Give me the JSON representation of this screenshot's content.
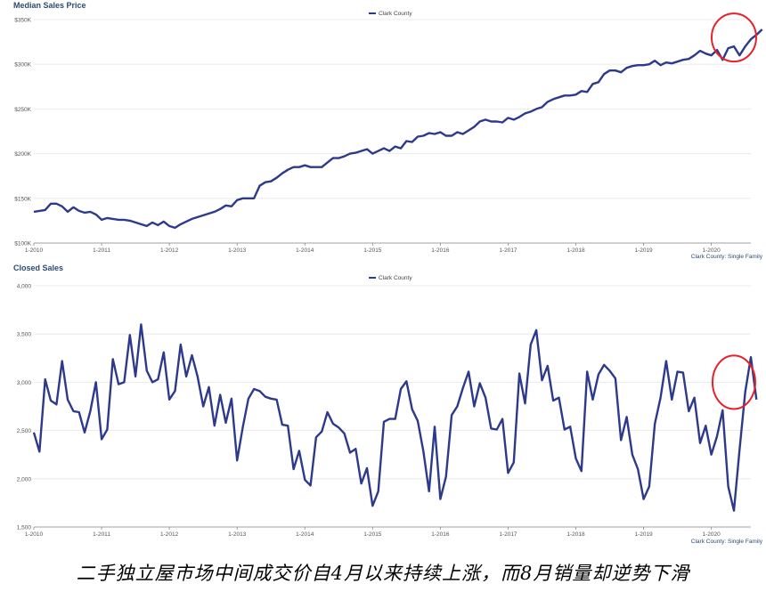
{
  "caption": "二手独立屋市场中间成交价自4月以来持续上涨，而8月销量却逆势下滑",
  "colors": {
    "line": "#2d3a8c",
    "title": "#2b4b73",
    "axis": "#555555",
    "grid": "#e6e6e6",
    "highlight": "#e8202a"
  },
  "chart_data": [
    {
      "type": "line",
      "title": "Median Sales Price",
      "legend": "Clark County",
      "source_note": "Clark County: Single Family",
      "ylim": [
        100000,
        350000
      ],
      "y_ticks": [
        100000,
        150000,
        200000,
        250000,
        300000,
        350000
      ],
      "y_tick_labels": [
        "$100K",
        "$150K",
        "$200K",
        "$250K",
        "$300K",
        "$350K"
      ],
      "x_range": [
        0,
        127
      ],
      "x_ticks": [
        0,
        12,
        24,
        36,
        48,
        60,
        72,
        84,
        96,
        108,
        120
      ],
      "x_tick_labels": [
        "1-2010",
        "1-2011",
        "1-2012",
        "1-2013",
        "1-2014",
        "1-2015",
        "1-2016",
        "1-2017",
        "1-2018",
        "1-2019",
        "1-2020"
      ],
      "highlight": {
        "x": 124,
        "y": 330000,
        "note": "red circle"
      },
      "series": [
        {
          "name": "Clark County",
          "values": [
            135000,
            136000,
            137000,
            144000,
            144000,
            141000,
            135000,
            140000,
            136000,
            134000,
            135000,
            132000,
            126000,
            128000,
            127000,
            126000,
            126000,
            125000,
            123000,
            121000,
            119000,
            123000,
            120000,
            124000,
            119000,
            117000,
            121000,
            124000,
            127000,
            129000,
            131000,
            133000,
            135000,
            138000,
            142000,
            141000,
            148000,
            150000,
            150000,
            150000,
            164000,
            168000,
            169000,
            173000,
            178000,
            182000,
            185000,
            185000,
            187000,
            185000,
            185000,
            185000,
            190000,
            195000,
            195000,
            197000,
            200000,
            201000,
            203000,
            205000,
            200000,
            203000,
            206000,
            203000,
            208000,
            206000,
            214000,
            213000,
            219000,
            220000,
            223000,
            222000,
            224000,
            220000,
            220000,
            224000,
            222000,
            226000,
            230000,
            236000,
            238000,
            236000,
            236000,
            235000,
            240000,
            238000,
            241000,
            245000,
            247000,
            250000,
            252000,
            258000,
            261000,
            263000,
            265000,
            265000,
            266000,
            270000,
            269000,
            278000,
            280000,
            289000,
            293000,
            293000,
            291000,
            296000,
            298000,
            299000,
            299000,
            300000,
            304000,
            299000,
            302000,
            301000,
            303000,
            305000,
            306000,
            310000,
            315000,
            312000,
            310000,
            316000,
            305000,
            318000,
            320000,
            310000,
            320000,
            328000,
            333000,
            339000
          ]
        }
      ]
    },
    {
      "type": "line",
      "title": "Closed Sales",
      "legend": "Clark County",
      "source_note": "Clark County: Single Family",
      "ylim": [
        1500,
        4000
      ],
      "y_ticks": [
        1500,
        2000,
        2500,
        3000,
        3500,
        4000
      ],
      "y_tick_labels": [
        "1,500",
        "2,000",
        "2,500",
        "3,000",
        "3,500",
        "4,000"
      ],
      "x_range": [
        0,
        127
      ],
      "x_ticks": [
        0,
        12,
        24,
        36,
        48,
        60,
        72,
        84,
        96,
        108,
        120
      ],
      "x_tick_labels": [
        "1-2010",
        "1-2011",
        "1-2012",
        "1-2013",
        "1-2014",
        "1-2015",
        "1-2016",
        "1-2017",
        "1-2018",
        "1-2019",
        "1-2020"
      ],
      "highlight": {
        "x": 124,
        "y": 3000,
        "note": "red circle"
      },
      "series": [
        {
          "name": "Clark County",
          "values": [
            2480,
            2280,
            3030,
            2810,
            2770,
            3220,
            2820,
            2700,
            2690,
            2480,
            2700,
            3000,
            2410,
            2510,
            3240,
            2980,
            3000,
            3490,
            3060,
            3600,
            3120,
            3000,
            3030,
            3310,
            2820,
            2910,
            3390,
            3060,
            3280,
            3060,
            2750,
            2950,
            2550,
            2870,
            2580,
            2830,
            2190,
            2530,
            2830,
            2930,
            2910,
            2850,
            2830,
            2820,
            2560,
            2550,
            2100,
            2290,
            1990,
            1930,
            2430,
            2490,
            2690,
            2570,
            2530,
            2470,
            2270,
            2310,
            1950,
            2110,
            1720,
            1870,
            2590,
            2620,
            2620,
            2930,
            3010,
            2720,
            2600,
            2280,
            1870,
            2540,
            1790,
            2020,
            2660,
            2750,
            2940,
            3110,
            2750,
            2990,
            2840,
            2520,
            2510,
            2620,
            2060,
            2170,
            3090,
            2780,
            3390,
            3540,
            3020,
            3170,
            2810,
            2840,
            2510,
            2540,
            2210,
            2080,
            3110,
            2820,
            3080,
            3180,
            3120,
            3040,
            2400,
            2640,
            2250,
            2100,
            1790,
            1920,
            2570,
            2840,
            3220,
            2820,
            3110,
            3100,
            2700,
            2840,
            2370,
            2550,
            2250,
            2440,
            2710,
            1920,
            1670,
            2300,
            2900,
            3260,
            2820
          ]
        }
      ]
    }
  ]
}
